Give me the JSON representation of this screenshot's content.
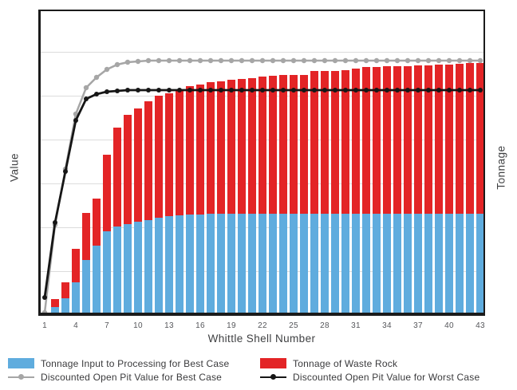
{
  "figure": {
    "xlabel": "Whittle Shell Number",
    "ylabel_left": "Value",
    "ylabel_right": "Tonnage"
  },
  "legend": {
    "items": [
      {
        "label": "Tonnage Input to Processing for Best Case",
        "marker": "swatch",
        "color": "#5facde"
      },
      {
        "label": "Discounted Open Pit Value for Best Case",
        "marker": "line",
        "color": "#a6a6a6"
      },
      {
        "label": "Tonnage of Waste Rock",
        "marker": "swatch",
        "color": "#e32426"
      },
      {
        "label": "Discounted Open Pit Value for Worst Case",
        "marker": "line",
        "color": "#161616"
      }
    ]
  },
  "chart_data": {
    "type": "bar",
    "subtype": "stacked-bars-with-overlay-lines",
    "title": "",
    "xlabel": "Whittle Shell Number",
    "ylabel": "Value",
    "ylabel_right": "Tonnage",
    "x": [
      1,
      2,
      3,
      4,
      5,
      6,
      7,
      8,
      9,
      10,
      11,
      12,
      13,
      14,
      15,
      16,
      17,
      18,
      19,
      20,
      21,
      22,
      23,
      24,
      25,
      26,
      27,
      28,
      29,
      30,
      31,
      32,
      33,
      34,
      35,
      36,
      37,
      38,
      39,
      40,
      41,
      42,
      43
    ],
    "x_ticks": [
      1,
      4,
      7,
      10,
      13,
      16,
      19,
      22,
      25,
      28,
      31,
      34,
      37,
      40,
      43
    ],
    "x_tick_labels": [
      "1",
      "4",
      "7",
      "10",
      "13",
      "16",
      "19",
      "22",
      "25",
      "28",
      "31",
      "34",
      "37",
      "40",
      "43"
    ],
    "ylim": [
      0,
      384
    ],
    "y_axis_numeric_labels": false,
    "layout": {
      "grid": "horizontal",
      "gridline_values": [
        55,
        110,
        165,
        220,
        275,
        330
      ],
      "legend_position": "bottom"
    },
    "series": [
      {
        "name": "Tonnage Input to Processing for Best Case",
        "type": "bar",
        "stack": "tonnage",
        "axis": "right",
        "color": "#5facde",
        "values": [
          2,
          11,
          22,
          42,
          70,
          88,
          106,
          112,
          115,
          118,
          120,
          123,
          125,
          126,
          127,
          127,
          128,
          128,
          128,
          128,
          128,
          128,
          128,
          128,
          128,
          128,
          128,
          128,
          128,
          128,
          128,
          128,
          128,
          128,
          128,
          128,
          128,
          128,
          128,
          128,
          128,
          128,
          128
        ]
      },
      {
        "name": "Tonnage of Waste Rock",
        "type": "bar",
        "stack": "tonnage",
        "axis": "right",
        "color": "#e32426",
        "values": [
          2,
          10,
          20,
          42,
          59,
          59,
          96,
          124,
          137,
          142,
          149,
          153,
          154,
          158,
          161,
          163,
          165,
          166,
          168,
          169,
          170,
          172,
          173,
          174,
          174,
          174,
          179,
          179,
          179,
          180,
          182,
          184,
          184,
          185,
          185,
          185,
          186,
          186,
          187,
          187,
          188,
          189,
          189
        ]
      },
      {
        "name": "Discounted Open Pit Value for Best Case",
        "type": "line",
        "axis": "left",
        "color": "#a6a6a6",
        "values": [
          4,
          114,
          184,
          253,
          286,
          299,
          309,
          315,
          318,
          319,
          320,
          320,
          320,
          320,
          320,
          320,
          320,
          320,
          320,
          320,
          320,
          320,
          320,
          320,
          320,
          320,
          320,
          320,
          320,
          320,
          320,
          320,
          320,
          320,
          320,
          320,
          320,
          320,
          320,
          320,
          320,
          320,
          320
        ]
      },
      {
        "name": "Discounted Open Pit Value for Worst Case",
        "type": "line",
        "axis": "left",
        "color": "#161616",
        "values": [
          23,
          117,
          181,
          245,
          272,
          278,
          281,
          282,
          283,
          283,
          283,
          283,
          283,
          283,
          283,
          283,
          283,
          283,
          283,
          283,
          283,
          283,
          283,
          283,
          283,
          283,
          283,
          283,
          283,
          283,
          283,
          283,
          283,
          283,
          283,
          283,
          283,
          283,
          283,
          283,
          283,
          283,
          283
        ]
      }
    ]
  }
}
